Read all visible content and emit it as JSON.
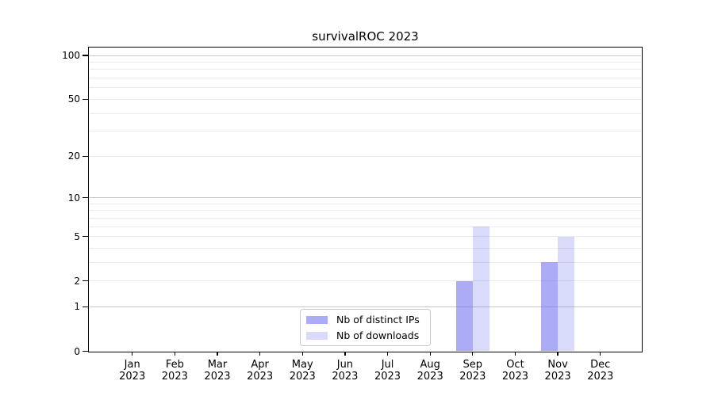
{
  "chart_data": {
    "type": "bar",
    "title": "survivalROC 2023",
    "x_categories": [
      "Jan 2023",
      "Feb 2023",
      "Mar 2023",
      "Apr 2023",
      "May 2023",
      "Jun 2023",
      "Jul 2023",
      "Aug 2023",
      "Sep 2023",
      "Oct 2023",
      "Nov 2023",
      "Dec 2023"
    ],
    "series": [
      {
        "name": "Nb of distinct IPs",
        "color": "rgba(102,102,238,0.55)",
        "values": [
          0,
          0,
          0,
          0,
          0,
          0,
          0,
          0,
          2,
          0,
          3,
          0
        ]
      },
      {
        "name": "Nb of downloads",
        "color": "rgba(102,102,238,0.24)",
        "values": [
          0,
          0,
          0,
          0,
          0,
          0,
          0,
          0,
          6,
          0,
          5,
          0
        ]
      }
    ],
    "y_axis": {
      "scale": "log1p",
      "range": [
        0,
        114
      ],
      "tick_values": [
        0,
        1,
        2,
        5,
        10,
        20,
        50,
        100
      ],
      "tick_labels": [
        "0",
        "1",
        "2",
        "5",
        "10",
        "20",
        "50",
        "100"
      ],
      "minor_gridlines": [
        2,
        3,
        4,
        5,
        6,
        7,
        8,
        9,
        20,
        30,
        40,
        50,
        60,
        70,
        80,
        90
      ],
      "major_gridlines": [
        1,
        10,
        100
      ]
    },
    "legend_position": "bottom-center",
    "grid": "horizontal-only"
  },
  "colors": {
    "background": "#ffffff",
    "axis": "#000000",
    "text": "#000000",
    "grid_minor": "#ececec",
    "grid_major": "#c6c6c6",
    "legend_border": "#c9c9c9",
    "bar_ips_on_white": "#aaaaf6",
    "bar_downloads_on_white": "#dadaf9"
  }
}
